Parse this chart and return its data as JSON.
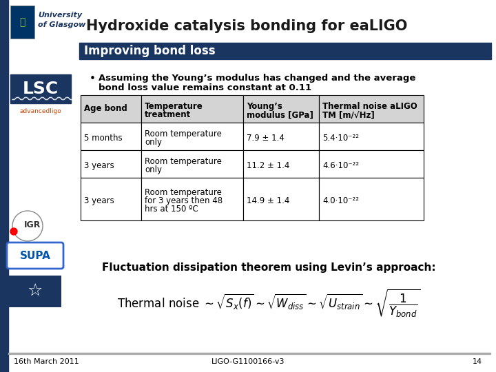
{
  "title": "Hydroxide catalysis bonding for eaLIGO",
  "subtitle": "Improving bond loss",
  "bullet_line1": "Assuming the Young’s modulus has changed and the average",
  "bullet_line2": "bond loss value remains constant at 0.11",
  "table_headers": [
    "Age bond",
    "Temperature\ntreatment",
    "Young’s\nmodulus [GPa]",
    "Thermal noise aLIGO\nTM [m/√Hz]"
  ],
  "table_rows": [
    [
      "5 months",
      "Room temperature\nonly",
      "7.9 ± 1.4",
      "5.4·10⁻²²"
    ],
    [
      "3 years",
      "Room temperature\nonly",
      "11.2 ± 1.4",
      "4.6·10⁻²²"
    ],
    [
      "3 years",
      "Room temperature\nfor 3 years then 48\nhrs at 150 ºC",
      "14.9 ± 1.4",
      "4.0·10⁻²²"
    ]
  ],
  "footer_text": "Fluctuation dissipation theorem using Levin’s approach:",
  "date": "16th March 2011",
  "doc_id": "LIGO-G1100166-v3",
  "page_num": "14",
  "bg_color": "#ffffff",
  "navy_color": "#1a3560",
  "lsc_bg": "#1a3560",
  "table_header_bg": "#d4d4d4",
  "table_border_color": "#000000",
  "left_bar_color": "#1a3560",
  "title_color": "#1a1a1a",
  "subtitle_text_color": "#ffffff",
  "orange_color": "#cc4400",
  "supa_color": "#0055aa"
}
